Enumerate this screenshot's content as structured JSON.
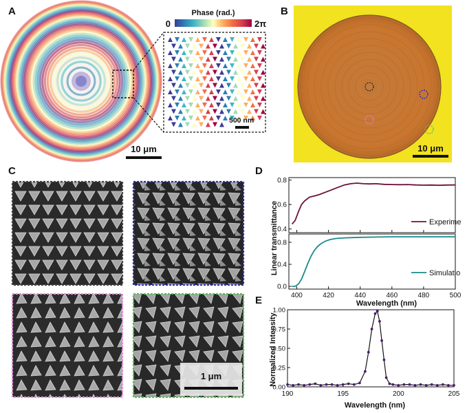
{
  "panel_labels": {
    "a": "A",
    "b": "B",
    "c": "C",
    "d": "D",
    "e": "E"
  },
  "panel_a": {
    "colorbar_title": "Phase (rad.)",
    "colorbar_min": "0",
    "colorbar_max": "2π",
    "scale_main": "10 μm",
    "scale_inset": "500 nm",
    "colormap": [
      "#3b3b98",
      "#2c7fb8",
      "#41b6c4",
      "#a1dab4",
      "#ffffbf",
      "#fdae61",
      "#f46d43",
      "#d53e4f",
      "#9e0142"
    ]
  },
  "panel_b": {
    "scale": "10 μm",
    "background_color": "#f2e21f",
    "disk_color": "#c8762f",
    "marker_colors": [
      "#222222",
      "#2d2db0",
      "#e87ac8",
      "#5cc25c"
    ]
  },
  "panel_c": {
    "scale": "1 μm",
    "border_colors": [
      "#444444",
      "#2d2db0",
      "#e090d8",
      "#50c050"
    ]
  },
  "chart_data": [
    {
      "type": "line",
      "title": "",
      "xlabel": "Wavelength (nm)",
      "ylabel": "Linear transmittance",
      "xlim": [
        395,
        500
      ],
      "xticks": [
        "400",
        "420",
        "440",
        "460",
        "480",
        "500"
      ],
      "subplots": [
        {
          "name": "Experiment",
          "color": "#6b1038",
          "ylim": [
            0.37,
            0.82
          ],
          "yticks": [
            "0.4",
            "0.6",
            "0.8"
          ],
          "x": [
            397,
            399,
            401,
            403,
            405,
            408,
            411,
            414,
            418,
            422,
            426,
            430,
            434,
            438,
            442,
            446,
            450,
            455,
            460,
            465,
            470,
            475,
            480,
            485,
            490,
            495,
            500
          ],
          "y": [
            0.44,
            0.47,
            0.54,
            0.6,
            0.63,
            0.66,
            0.67,
            0.68,
            0.7,
            0.72,
            0.74,
            0.76,
            0.77,
            0.775,
            0.77,
            0.768,
            0.77,
            0.765,
            0.763,
            0.762,
            0.763,
            0.76,
            0.758,
            0.759,
            0.757,
            0.759,
            0.76
          ]
        },
        {
          "name": "Simulation",
          "color": "#1a8a8a",
          "ylim": [
            -0.05,
            0.95
          ],
          "yticks": [
            "0.0",
            "0.4",
            "0.8"
          ],
          "x": [
            397,
            399,
            401,
            403,
            405,
            407,
            409,
            411,
            413,
            415,
            418,
            421,
            425,
            430,
            435,
            440,
            450,
            460,
            470,
            480,
            490,
            500
          ],
          "y": [
            0.0,
            0.0,
            0.04,
            0.13,
            0.27,
            0.42,
            0.55,
            0.65,
            0.72,
            0.77,
            0.82,
            0.85,
            0.87,
            0.88,
            0.885,
            0.89,
            0.895,
            0.9,
            0.9,
            0.9,
            0.9,
            0.9
          ]
        }
      ],
      "legend": [
        "Experiment",
        "Simulation"
      ]
    },
    {
      "type": "line",
      "title": "",
      "xlabel": "Wavelength (nm)",
      "ylabel": "Normalized Intensity",
      "xlim": [
        190,
        205
      ],
      "ylim": [
        0,
        1
      ],
      "xticks": [
        "190",
        "195",
        "200",
        "205"
      ],
      "yticks": [
        "0.00",
        "0.25",
        "0.50",
        "0.75",
        "1.00"
      ],
      "series": [
        {
          "name": "spectrum",
          "color": "#4b1c6e",
          "x": [
            190,
            190.5,
            191,
            191.5,
            192,
            192.5,
            193,
            193.5,
            194,
            194.5,
            195,
            195.5,
            196,
            196.5,
            197,
            197.3,
            197.6,
            197.9,
            198.1,
            198.3,
            198.5,
            198.7,
            198.9,
            199.2,
            199.5,
            200,
            200.5,
            201,
            201.5,
            202,
            202.5,
            203,
            203.5,
            204,
            204.5,
            205
          ],
          "y": [
            0.03,
            0.02,
            0.03,
            0.02,
            0.03,
            0.04,
            0.02,
            0.03,
            0.03,
            0.02,
            0.03,
            0.04,
            0.03,
            0.05,
            0.2,
            0.45,
            0.75,
            0.95,
            0.98,
            0.85,
            0.6,
            0.35,
            0.12,
            0.04,
            0.03,
            0.02,
            0.03,
            0.03,
            0.02,
            0.03,
            0.02,
            0.03,
            0.02,
            0.03,
            0.02,
            0.02
          ]
        }
      ]
    }
  ]
}
